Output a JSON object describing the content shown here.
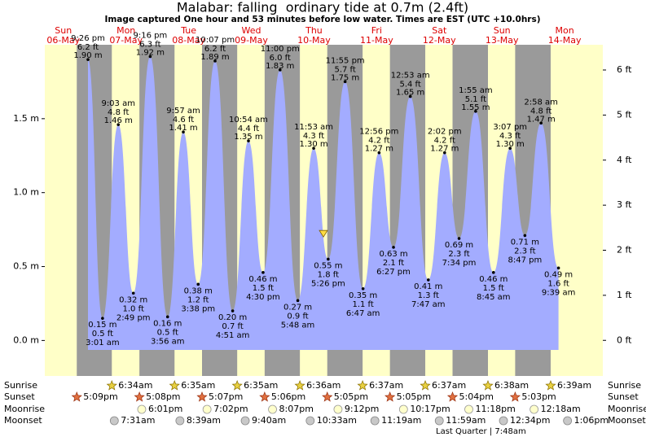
{
  "chart_data": {
    "type": "tide",
    "title": "Malabar: falling  ordinary tide at 0.7m (2.4ft)",
    "subtitle": "Image captured One hour and 53 minutes before low water. Times are EST (UTC +10.0hrs)",
    "days": [
      "Sun",
      "Mon",
      "Tue",
      "Wed",
      "Thu",
      "Fri",
      "Sat",
      "Sun",
      "Mon"
    ],
    "dates": [
      "06-May",
      "07-May",
      "08-May",
      "09-May",
      "10-May",
      "11-May",
      "12-May",
      "13-May",
      "14-May"
    ],
    "ylim": [
      -0.24,
      2.0
    ],
    "yticks": [
      {
        "value": 0,
        "label": "0.0 m"
      },
      {
        "value": 0.5,
        "label": "0.5 m"
      },
      {
        "value": 1,
        "label": "1.0 m"
      },
      {
        "value": 1.5,
        "label": "1.5 m"
      }
    ],
    "y2lim": [
      -0.79,
      6.56
    ],
    "y2ticks": [
      {
        "value": 0,
        "label": "0 ft"
      },
      {
        "value": 1,
        "label": "1 ft"
      },
      {
        "value": 2,
        "label": "2 ft"
      },
      {
        "value": 3,
        "label": "3 ft"
      },
      {
        "value": 4,
        "label": "4 ft"
      },
      {
        "value": 5,
        "label": "5 ft"
      },
      {
        "value": 6,
        "label": "6 ft"
      }
    ],
    "current_level": 0.7,
    "tides": {
      "times": [
        "9:26 pm",
        "3:01 am",
        "9:03 am",
        "2:49 pm",
        "9:16 pm",
        "3:56 am",
        "9:57 am",
        "3:38 pm",
        "10:07 pm",
        "4:51 am",
        "10:54 am",
        "4:30 pm",
        "11:00 pm",
        "5:48 am",
        "11:53 am",
        "5:26 pm",
        "11:55 pm",
        "6:47 am",
        "12:56 pm",
        "6:27 pm",
        "12:53 am",
        "7:47 am",
        "2:02 pm",
        "7:34 pm",
        "1:55 am",
        "8:45 am",
        "3:07 pm",
        "8:47 pm",
        "2:58 am",
        "9:39 am"
      ],
      "values": [
        1.9,
        0.15,
        1.46,
        0.32,
        1.92,
        0.16,
        1.41,
        0.38,
        1.89,
        0.2,
        1.35,
        0.46,
        1.83,
        0.27,
        1.3,
        0.55,
        1.75,
        0.35,
        1.27,
        0.63,
        1.65,
        0.41,
        1.27,
        0.69,
        1.55,
        0.46,
        1.3,
        0.71,
        1.47,
        0.49
      ],
      "value_labels": [
        "1.90 m",
        "0.15 m",
        "1.46 m",
        "0.32 m",
        "1.92 m",
        "0.16 m",
        "1.41 m",
        "0.38 m",
        "1.89 m",
        "0.20 m",
        "1.35 m",
        "0.46 m",
        "1.83 m",
        "0.27 m",
        "1.30 m",
        "0.55 m",
        "1.75 m",
        "0.35 m",
        "1.27 m",
        "0.63 m",
        "1.65 m",
        "0.41 m",
        "1.27 m",
        "0.69 m",
        "1.55 m",
        "0.46 m",
        "1.30 m",
        "0.71 m",
        "1.47 m",
        "0.49 m"
      ],
      "ft_labels": [
        "6.2 ft",
        "0.5 ft",
        "4.8 ft",
        "1.0 ft",
        "6.3 ft",
        "0.5 ft",
        "4.6 ft",
        "1.2 ft",
        "6.2 ft",
        "0.7 ft",
        "4.4 ft",
        "1.5 ft",
        "6.0 ft",
        "0.9 ft",
        "4.3 ft",
        "1.8 ft",
        "5.7 ft",
        "1.1 ft",
        "4.2 ft",
        "2.1 ft",
        "5.4 ft",
        "1.3 ft",
        "4.2 ft",
        "2.3 ft",
        "5.1 ft",
        "1.5 ft",
        "4.3 ft",
        "2.3 ft",
        "4.8 ft",
        "1.6 ft"
      ]
    },
    "rows": {
      "sunrise": {
        "label": "Sunrise",
        "times": [
          null,
          "6:34am",
          "6:35am",
          "6:35am",
          "6:36am",
          "6:37am",
          "6:37am",
          "6:38am",
          "6:39am"
        ]
      },
      "sunset": {
        "label": "Sunset",
        "times": [
          "5:09pm",
          "5:08pm",
          "5:07pm",
          "5:06pm",
          "5:05pm",
          "5:05pm",
          "5:04pm",
          "5:03pm",
          null
        ]
      },
      "moonrise": {
        "label": "Moonrise",
        "times": [
          null,
          "6:01pm",
          "7:02pm",
          "8:07pm",
          "9:12pm",
          "10:17pm",
          "11:18pm",
          null,
          "12:18am"
        ]
      },
      "moonset": {
        "label": "Moonset",
        "times": [
          null,
          "7:31am",
          "8:39am",
          "9:40am",
          "10:33am",
          "11:19am",
          "11:59am",
          "12:34pm",
          "1:06pm"
        ]
      }
    },
    "moon_phase": "Last Quarter | 7:48am",
    "colors": {
      "day": "#ffffc8",
      "night": "#9a9a9a",
      "tide": "#a3acff",
      "date_text": "#dd0000"
    }
  }
}
